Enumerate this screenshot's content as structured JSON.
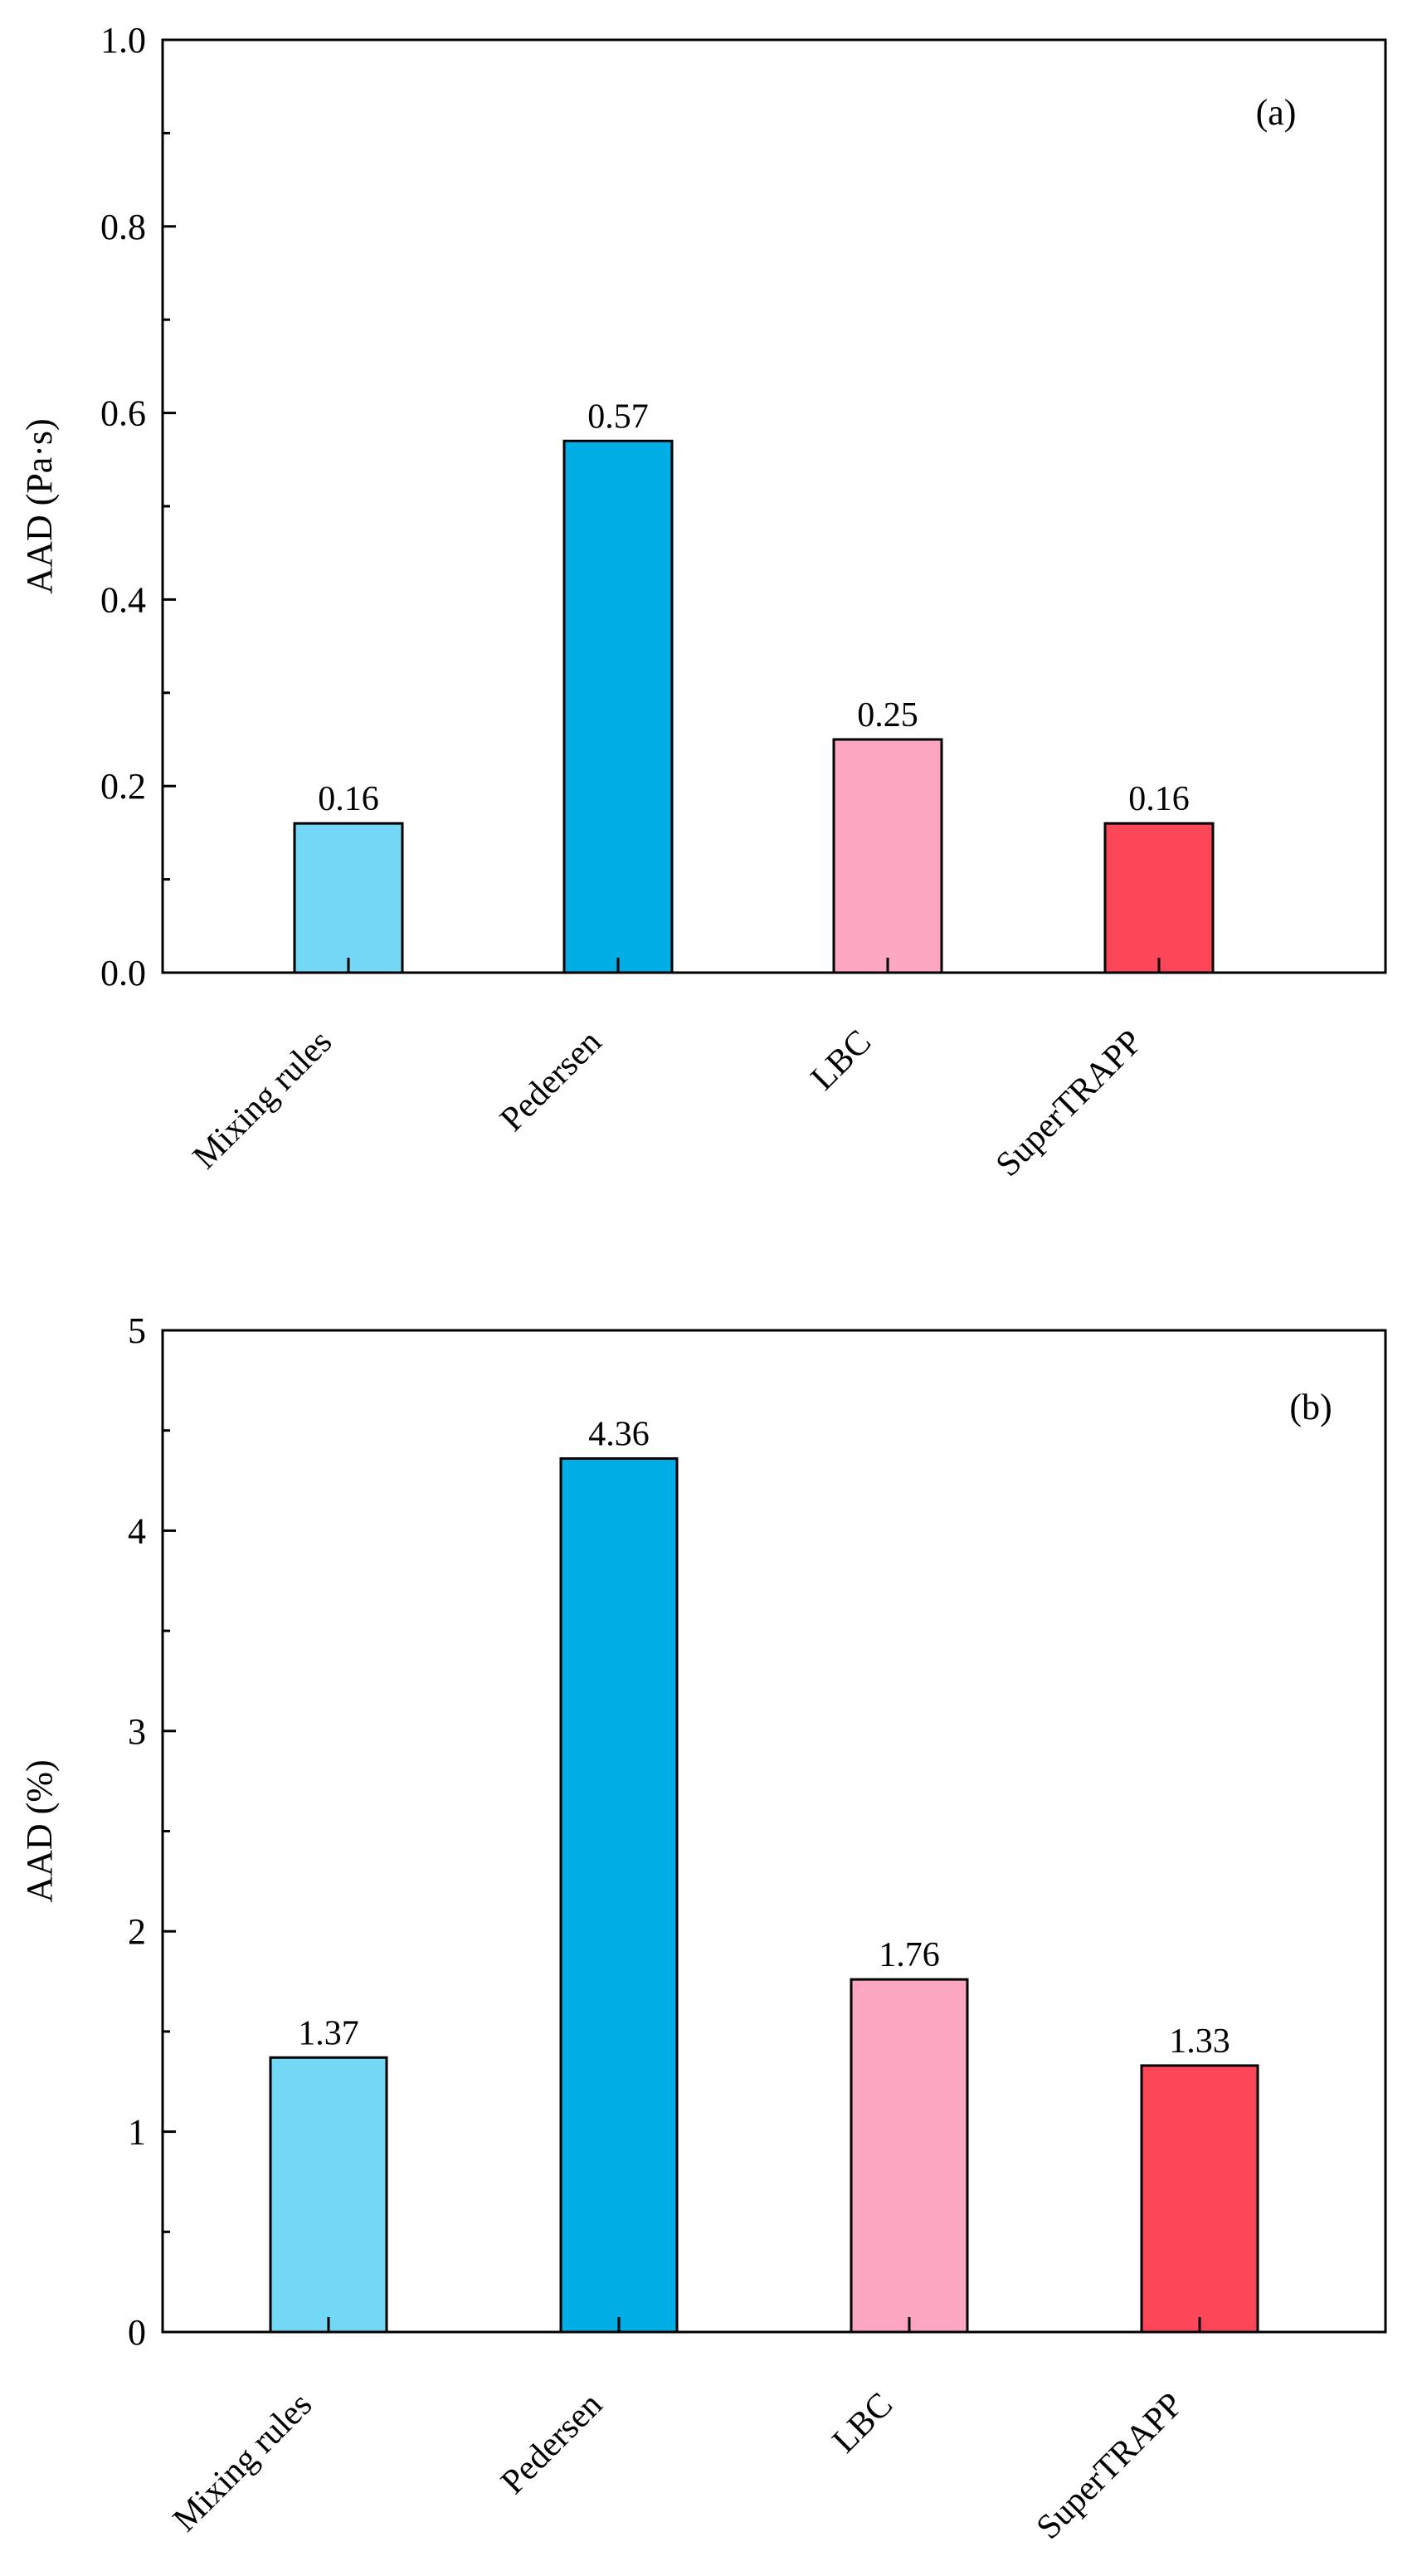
{
  "chart_data": [
    {
      "type": "bar",
      "panel_label": "(a)",
      "categories": [
        "Mixing rules",
        "Pedersen",
        "LBC",
        "SuperTRAPP"
      ],
      "values": [
        0.16,
        0.57,
        0.25,
        0.16
      ],
      "value_labels": [
        "0.16",
        "0.57",
        "0.25",
        "0.16"
      ],
      "colors": [
        "#72D8F5",
        "#00AEE5",
        "#FCA6C2",
        "#FE4659"
      ],
      "title": "",
      "xlabel": "",
      "ylabel": "AAD (Pa·s)",
      "ylim": [
        0,
        1.0
      ],
      "yticks": [
        0.0,
        0.2,
        0.4,
        0.6,
        0.8,
        1.0
      ],
      "ytick_labels": [
        "0.0",
        "0.2",
        "0.4",
        "0.6",
        "0.8",
        "1.0"
      ],
      "grid": false,
      "legend": "none"
    },
    {
      "type": "bar",
      "panel_label": "(b)",
      "categories": [
        "Mixing rules",
        "Pedersen",
        "LBC",
        "SuperTRAPP"
      ],
      "values": [
        1.37,
        4.36,
        1.76,
        1.33
      ],
      "value_labels": [
        "1.37",
        "4.36",
        "1.76",
        "1.33"
      ],
      "colors": [
        "#72D8F5",
        "#00AEE5",
        "#FCA6C2",
        "#FE4659"
      ],
      "title": "",
      "xlabel": "",
      "ylabel": "AAD (%)",
      "ylim": [
        0,
        5
      ],
      "yticks": [
        0,
        1,
        2,
        3,
        4,
        5
      ],
      "ytick_labels": [
        "0",
        "1",
        "2",
        "3",
        "4",
        "5"
      ],
      "grid": false,
      "legend": "none"
    }
  ]
}
